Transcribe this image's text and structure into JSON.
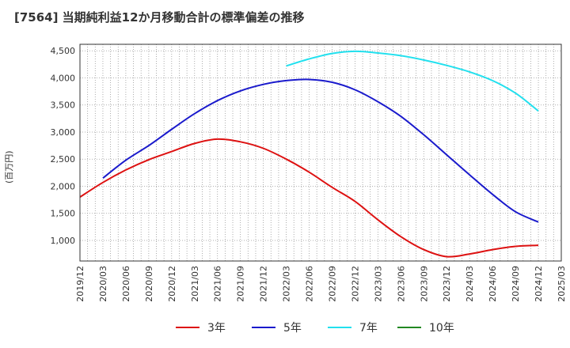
{
  "title": "[7564]  当期純利益12か月移動合計の標準偏差の推移",
  "colors": {
    "3y": "#dd1111",
    "5y": "#1a1acc",
    "7y": "#22e0ee",
    "10y": "#228822"
  },
  "chart_data": {
    "type": "line",
    "title": "[7564]  当期純利益12か月移動合計の標準偏差の推移",
    "ylabel": "(百万円)",
    "xlabel": "",
    "ylim": [
      620,
      4620
    ],
    "yticks": [
      1000,
      1500,
      2000,
      2500,
      3000,
      3500,
      4000,
      4500
    ],
    "ytick_labels": [
      "1,000",
      "1,500",
      "2,000",
      "2,500",
      "3,000",
      "3,500",
      "4,000",
      "4,500"
    ],
    "x_ticks": [
      "2019/12",
      "2020/03",
      "2020/06",
      "2020/09",
      "2020/12",
      "2021/03",
      "2021/06",
      "2021/09",
      "2021/12",
      "2022/03",
      "2022/06",
      "2022/09",
      "2022/12",
      "2023/03",
      "2023/06",
      "2023/09",
      "2023/12",
      "2024/03",
      "2024/06",
      "2024/09",
      "2024/12",
      "2025/03"
    ],
    "grid": true,
    "legend_position": "bottom",
    "series": [
      {
        "name": "3年",
        "color": "#dd1111",
        "x": [
          "2019/12",
          "2020/03",
          "2020/06",
          "2020/09",
          "2020/12",
          "2021/03",
          "2021/06",
          "2021/09",
          "2021/12",
          "2022/03",
          "2022/06",
          "2022/09",
          "2022/12",
          "2023/03",
          "2023/06",
          "2023/09",
          "2023/12",
          "2024/03",
          "2024/06",
          "2024/09",
          "2024/12"
        ],
        "values": [
          1800,
          2070,
          2300,
          2490,
          2640,
          2790,
          2870,
          2820,
          2700,
          2500,
          2260,
          1980,
          1720,
          1380,
          1070,
          830,
          700,
          750,
          830,
          890,
          910
        ]
      },
      {
        "name": "5年",
        "color": "#1a1acc",
        "x": [
          "2020/03",
          "2020/06",
          "2020/09",
          "2020/12",
          "2021/03",
          "2021/06",
          "2021/09",
          "2021/12",
          "2022/03",
          "2022/06",
          "2022/09",
          "2022/12",
          "2023/03",
          "2023/06",
          "2023/09",
          "2023/12",
          "2024/03",
          "2024/06",
          "2024/09",
          "2024/12"
        ],
        "values": [
          2150,
          2480,
          2750,
          3050,
          3340,
          3580,
          3760,
          3880,
          3950,
          3970,
          3920,
          3780,
          3560,
          3290,
          2950,
          2580,
          2210,
          1850,
          1530,
          1340
        ]
      },
      {
        "name": "7年",
        "color": "#22e0ee",
        "x": [
          "2022/03",
          "2022/06",
          "2022/09",
          "2022/12",
          "2023/03",
          "2023/06",
          "2023/09",
          "2023/12",
          "2024/03",
          "2024/06",
          "2024/09",
          "2024/12"
        ],
        "values": [
          4220,
          4350,
          4450,
          4490,
          4460,
          4410,
          4330,
          4230,
          4110,
          3950,
          3720,
          3390
        ]
      },
      {
        "name": "10年",
        "color": "#228822",
        "x": [],
        "values": []
      }
    ]
  }
}
